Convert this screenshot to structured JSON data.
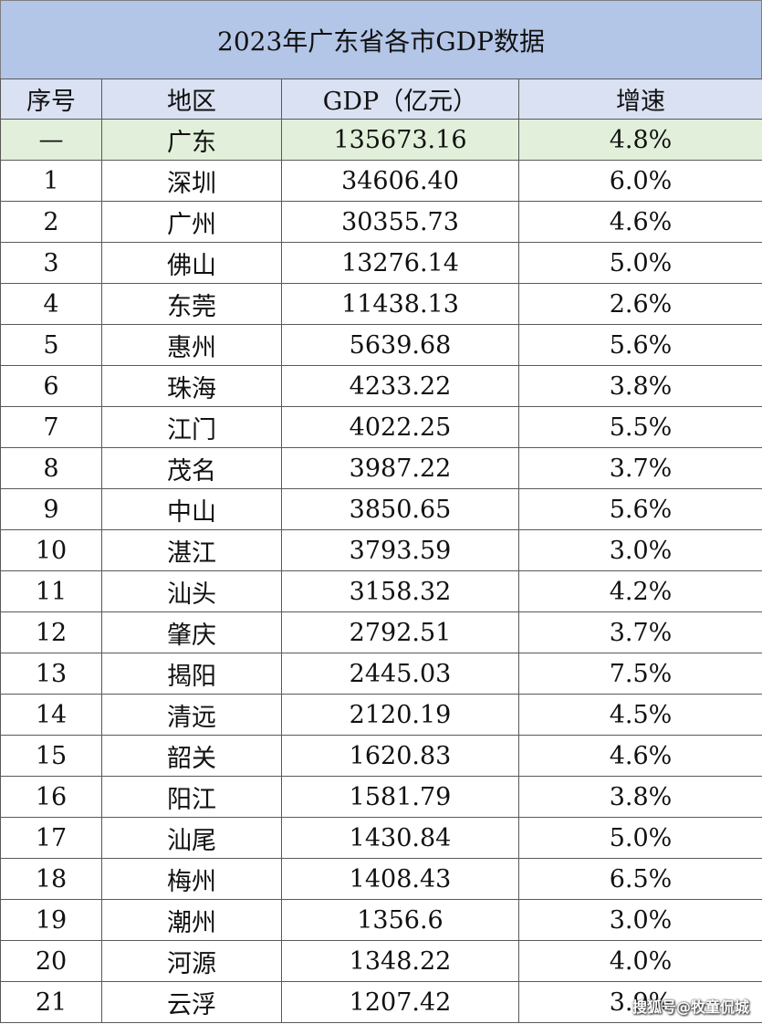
{
  "title": "2023年广东省各市GDP数据",
  "headers": [
    "序号",
    "地区",
    "GDP（亿元）",
    "增速"
  ],
  "total_row": [
    "—",
    "广东",
    "135673.16",
    "4.8%"
  ],
  "rows": [
    [
      "1",
      "深圳",
      "34606.40",
      "6.0%"
    ],
    [
      "2",
      "广州",
      "30355.73",
      "4.6%"
    ],
    [
      "3",
      "佛山",
      "13276.14",
      "5.0%"
    ],
    [
      "4",
      "东莞",
      "11438.13",
      "2.6%"
    ],
    [
      "5",
      "惠州",
      "5639.68",
      "5.6%"
    ],
    [
      "6",
      "珠海",
      "4233.22",
      "3.8%"
    ],
    [
      "7",
      "江门",
      "4022.25",
      "5.5%"
    ],
    [
      "8",
      "茂名",
      "3987.22",
      "3.7%"
    ],
    [
      "9",
      "中山",
      "3850.65",
      "5.6%"
    ],
    [
      "10",
      "湛江",
      "3793.59",
      "3.0%"
    ],
    [
      "11",
      "汕头",
      "3158.32",
      "4.2%"
    ],
    [
      "12",
      "肇庆",
      "2792.51",
      "3.7%"
    ],
    [
      "13",
      "揭阳",
      "2445.03",
      "7.5%"
    ],
    [
      "14",
      "清远",
      "2120.19",
      "4.5%"
    ],
    [
      "15",
      "韶关",
      "1620.83",
      "4.6%"
    ],
    [
      "16",
      "阳江",
      "1581.79",
      "3.8%"
    ],
    [
      "17",
      "汕尾",
      "1430.84",
      "5.0%"
    ],
    [
      "18",
      "梅州",
      "1408.43",
      "6.5%"
    ],
    [
      "19",
      "潮州",
      "1356.6",
      "3.0%"
    ],
    [
      "20",
      "河源",
      "1348.22",
      "4.0%"
    ],
    [
      "21",
      "云浮",
      "1207.42",
      "3.9%"
    ]
  ],
  "watermark": "搜狐号@牧童侃城",
  "colors": {
    "title_bg": "#b4c6e7",
    "header_bg": "#d9e1f2",
    "total_bg": "#e2efda"
  }
}
